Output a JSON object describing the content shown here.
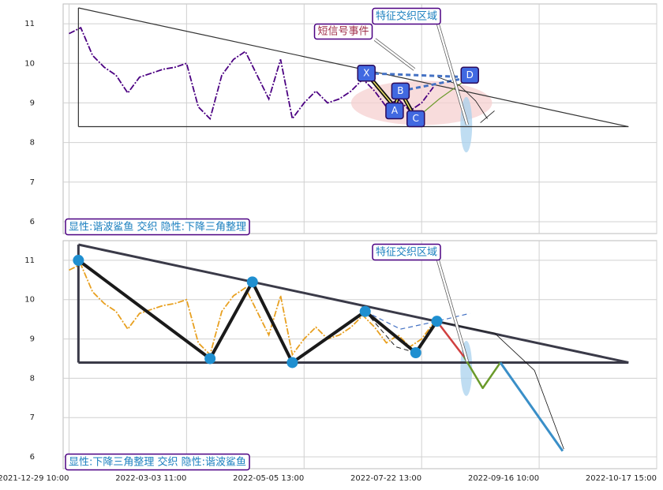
{
  "chart_data": [
    {
      "type": "line",
      "caption": "显性:谐波鲨鱼 交织 隐性:下降三角整理",
      "annotations": [
        "短信号事件",
        "特征交织区域"
      ],
      "x": [
        0,
        10,
        20,
        30,
        40,
        50,
        60,
        70,
        80,
        90,
        100,
        110,
        120,
        130,
        140,
        150,
        160,
        170,
        180,
        190,
        200,
        210,
        220,
        230,
        240,
        250,
        260,
        270,
        280,
        290,
        300,
        310
      ],
      "series": [
        {
          "color": "#4b0082",
          "values": [
            10.75,
            10.9,
            10.2,
            9.9,
            9.7,
            9.25,
            9.65,
            9.75,
            9.85,
            9.9,
            10.0,
            8.9,
            8.6,
            9.7,
            10.1,
            10.3,
            9.7,
            9.1,
            10.1,
            8.6,
            9.0,
            9.3,
            9.0,
            9.1,
            9.3,
            9.6,
            9.3,
            8.9,
            9.1,
            8.8,
            9.0,
            9.4
          ]
        }
      ],
      "xlim": [
        -5,
        500
      ],
      "ylim": [
        5.7,
        11.5
      ],
      "yticks": [
        6,
        7,
        8,
        9,
        10,
        11
      ],
      "grid": true,
      "regions": [
        {
          "cx": 300,
          "cy": 9.0,
          "rx": 60,
          "ry": 0.56,
          "color": "#f6d0d0"
        },
        {
          "cx": 338,
          "cy": 8.45,
          "rx": 5,
          "ry": 0.7,
          "color": "#a9d2ee"
        }
      ],
      "lines": [
        {
          "color": "#333333",
          "width": 1.2,
          "points": [
            [
              8,
              11.4
            ],
            [
              476,
              8.4
            ]
          ]
        },
        {
          "color": "#333333",
          "width": 1.2,
          "points": [
            [
              8,
              8.4
            ],
            [
              476,
              8.4
            ]
          ]
        },
        {
          "color": "#333333",
          "width": 1.2,
          "points": [
            [
              8,
              8.4
            ],
            [
              8,
              11.4
            ]
          ]
        },
        {
          "color": "#111111",
          "width": 5,
          "points": [
            [
              253,
              9.75
            ],
            [
              277,
              8.9
            ],
            [
              282,
              9.3
            ],
            [
              295,
              8.6
            ]
          ]
        },
        {
          "color": "#f3e46a",
          "width": 1.5,
          "points": [
            [
              253,
              9.75
            ],
            [
              277,
              8.9
            ],
            [
              282,
              9.3
            ],
            [
              295,
              8.6
            ]
          ]
        },
        {
          "color": "#6a9a2a",
          "width": 1.2,
          "points": [
            [
              295,
              8.6
            ],
            [
              315,
              9.1
            ],
            [
              341,
              9.65
            ]
          ]
        },
        {
          "color": "#4472c4",
          "width": 3,
          "dash": true,
          "points": [
            [
              253,
              9.75
            ],
            [
              341,
              9.65
            ]
          ]
        },
        {
          "color": "#4472c4",
          "width": 3,
          "dash": true,
          "points": [
            [
              282,
              9.3
            ],
            [
              341,
              9.65
            ]
          ]
        },
        {
          "color": "#111111",
          "width": 0.8,
          "points": [
            [
              314,
              9.65
            ],
            [
              332,
              9.45
            ],
            [
              346,
              9.05
            ],
            [
              356,
              8.6
            ]
          ]
        },
        {
          "color": "#111111",
          "width": 0.8,
          "points": [
            [
              350,
              8.5
            ],
            [
              362,
              8.8
            ]
          ]
        }
      ],
      "pivots": [
        {
          "label": "X",
          "x": 253,
          "y": 9.75
        },
        {
          "label": "A",
          "x": 277,
          "y": 8.8
        },
        {
          "label": "B",
          "x": 282,
          "y": 9.3
        },
        {
          "label": "C",
          "x": 295,
          "y": 8.6
        },
        {
          "label": "D",
          "x": 341,
          "y": 9.7
        }
      ]
    },
    {
      "type": "line",
      "caption": "显性:下降三角整理 交织 隐性:谐波鲨鱼",
      "annotations": [
        "特征交织区域"
      ],
      "x": [
        0,
        10,
        20,
        30,
        40,
        50,
        60,
        70,
        80,
        90,
        100,
        110,
        120,
        130,
        140,
        150,
        160,
        170,
        180,
        190,
        200,
        210,
        220,
        230,
        240,
        250,
        260,
        270,
        280,
        290,
        300,
        310
      ],
      "series": [
        {
          "color": "#e8a020",
          "values": [
            10.75,
            10.9,
            10.2,
            9.9,
            9.7,
            9.25,
            9.65,
            9.75,
            9.85,
            9.9,
            10.0,
            8.9,
            8.6,
            9.7,
            10.1,
            10.3,
            9.7,
            9.1,
            10.1,
            8.6,
            9.0,
            9.3,
            9.0,
            9.1,
            9.3,
            9.6,
            9.3,
            8.9,
            9.1,
            8.8,
            9.0,
            9.4
          ]
        }
      ],
      "xlim": [
        -5,
        500
      ],
      "ylim": [
        5.7,
        11.5
      ],
      "yticks": [
        6,
        7,
        8,
        9,
        10,
        11
      ],
      "grid": true,
      "xticks": [
        {
          "value": 0,
          "label": "2021-12-29 10:00"
        },
        {
          "value": 100,
          "label": "2022-03-03 11:00"
        },
        {
          "value": 200,
          "label": "2022-05-05 13:00"
        },
        {
          "value": 300,
          "label": "2022-07-22 13:00"
        },
        {
          "value": 400,
          "label": "2022-09-16 10:00"
        },
        {
          "value": 500,
          "label": "2022-10-17 15:00"
        }
      ],
      "regions": [
        {
          "cx": 338,
          "cy": 8.25,
          "rx": 5,
          "ry": 0.7,
          "color": "#a9d2ee"
        }
      ],
      "lines": [
        {
          "color": "#3a3a48",
          "width": 3,
          "points": [
            [
              8,
              11.4
            ],
            [
              476,
              8.4
            ]
          ]
        },
        {
          "color": "#3a3a48",
          "width": 3,
          "points": [
            [
              8,
              8.4
            ],
            [
              476,
              8.4
            ]
          ]
        },
        {
          "color": "#3a3a48",
          "width": 3,
          "points": [
            [
              8,
              8.4
            ],
            [
              8,
              11.4
            ]
          ]
        },
        {
          "color": "#1a1a1a",
          "width": 4,
          "points": [
            [
              8,
              11.0
            ],
            [
              120,
              8.5
            ],
            [
              156,
              10.45
            ],
            [
              190,
              8.4
            ],
            [
              252,
              9.7
            ],
            [
              295,
              8.65
            ],
            [
              313,
              9.45
            ]
          ]
        },
        {
          "color": "#4472c4",
          "width": 1.2,
          "dash": true,
          "points": [
            [
              252,
              9.7
            ],
            [
              282,
              9.25
            ],
            [
              313,
              9.45
            ],
            [
              341,
              9.65
            ]
          ]
        },
        {
          "color": "#1a1a1a",
          "width": 1,
          "dash": true,
          "points": [
            [
              252,
              9.7
            ],
            [
              278,
              8.8
            ],
            [
              295,
              8.65
            ]
          ]
        },
        {
          "color": "#d04040",
          "width": 2.5,
          "points": [
            [
              313,
              9.45
            ],
            [
              336,
              8.55
            ]
          ]
        },
        {
          "color": "#6a9a2a",
          "width": 2.5,
          "points": [
            [
              336,
              8.55
            ],
            [
              352,
              7.75
            ],
            [
              367,
              8.4
            ]
          ]
        },
        {
          "color": "#3a8fc8",
          "width": 3,
          "points": [
            [
              367,
              8.4
            ],
            [
              420,
              6.15
            ]
          ]
        },
        {
          "color": "#111111",
          "width": 0.8,
          "points": [
            [
              313,
              9.45
            ],
            [
              362,
              9.15
            ],
            [
              396,
              8.2
            ],
            [
              421,
              6.2
            ]
          ]
        }
      ],
      "dots": [
        [
          8,
          11.0
        ],
        [
          120,
          8.5
        ],
        [
          156,
          10.45
        ],
        [
          190,
          8.4
        ],
        [
          252,
          9.7
        ],
        [
          295,
          8.65
        ],
        [
          313,
          9.45
        ]
      ]
    }
  ]
}
